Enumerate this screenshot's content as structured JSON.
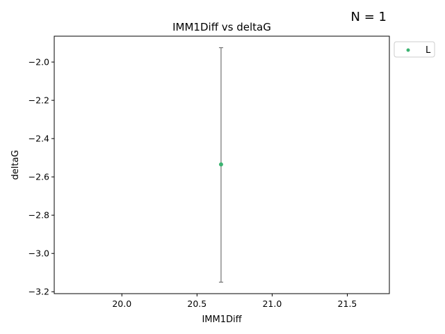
{
  "chart_data": {
    "type": "scatter",
    "title": "IMM1Diff vs deltaG",
    "xlabel": "IMM1Diff",
    "ylabel": "deltaG",
    "annotation": "N = 1",
    "xlim": [
      19.55,
      21.78
    ],
    "ylim": [
      -3.21,
      -1.865
    ],
    "xticks": [
      20.0,
      20.5,
      21.0,
      21.5
    ],
    "xtick_labels": [
      "20.0",
      "20.5",
      "21.0",
      "21.5"
    ],
    "yticks": [
      -2.0,
      -2.2,
      -2.4,
      -2.6,
      -2.8,
      -3.0,
      -3.2
    ],
    "ytick_labels": [
      "−2.0",
      "−2.2",
      "−2.4",
      "−2.6",
      "−2.8",
      "−3.0",
      "−3.2"
    ],
    "grid": false,
    "legend_position": "outside-top-right",
    "series": [
      {
        "name": "L",
        "color": "#3cb371",
        "points": [
          {
            "x": 20.66,
            "y": -2.535,
            "yerr_low": -3.15,
            "yerr_high": -1.925
          }
        ]
      }
    ],
    "errorbar_color": "#707070"
  }
}
